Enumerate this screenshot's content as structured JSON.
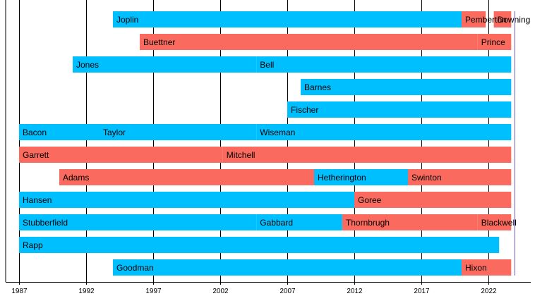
{
  "chart_data": {
    "type": "timeline",
    "x_range": [
      1986,
      2023.2
    ],
    "ticks": [
      1987,
      1992,
      1997,
      2002,
      2007,
      2012,
      2017,
      2022
    ],
    "grid": true,
    "colors": {
      "a": "#00BFFF",
      "b": "#FA6A5E"
    },
    "rows": [
      {
        "segments": [
          {
            "label": "Joplin",
            "start": 1994.0,
            "end": 2020.0,
            "color": "a"
          },
          {
            "label": "Pemberton",
            "start": 2020.0,
            "end": 2021.8,
            "color": "b"
          },
          {
            "label": "Downing",
            "start": 2022.4,
            "end": 2023.7,
            "color": "b"
          }
        ]
      },
      {
        "segments": [
          {
            "label": "Buettner",
            "start": 1996.0,
            "end": 2021.2,
            "color": "b"
          },
          {
            "label": "Prince",
            "start": 2021.2,
            "end": 2023.7,
            "color": "b"
          }
        ]
      },
      {
        "segments": [
          {
            "label": "Jones",
            "start": 1991.0,
            "end": 2004.7,
            "color": "a"
          },
          {
            "label": "Bell",
            "start": 2004.7,
            "end": 2023.7,
            "color": "a"
          }
        ]
      },
      {
        "segments": [
          {
            "label": "Barnes",
            "start": 2008.0,
            "end": 2023.7,
            "color": "a"
          }
        ]
      },
      {
        "segments": [
          {
            "label": "Fischer",
            "start": 2007.0,
            "end": 2023.7,
            "color": "a"
          }
        ]
      },
      {
        "segments": [
          {
            "label": "Bacon",
            "start": 1987.0,
            "end": 1993.0,
            "color": "a"
          },
          {
            "label": "Taylor",
            "start": 1993.0,
            "end": 2004.7,
            "color": "a"
          },
          {
            "label": "Wiseman",
            "start": 2004.7,
            "end": 2023.7,
            "color": "a"
          }
        ]
      },
      {
        "segments": [
          {
            "label": "Garrett",
            "start": 1987.0,
            "end": 2002.2,
            "color": "b"
          },
          {
            "label": "Mitchell",
            "start": 2002.2,
            "end": 2023.7,
            "color": "b"
          }
        ]
      },
      {
        "segments": [
          {
            "label": "Adams",
            "start": 1990.0,
            "end": 2009.0,
            "color": "b"
          },
          {
            "label": "Hetherington",
            "start": 2009.0,
            "end": 2016.0,
            "color": "a"
          },
          {
            "label": "Swinton",
            "start": 2016.0,
            "end": 2023.7,
            "color": "b"
          }
        ]
      },
      {
        "segments": [
          {
            "label": "Hansen",
            "start": 1987.0,
            "end": 2012.0,
            "color": "a"
          },
          {
            "label": "Goree",
            "start": 2012.0,
            "end": 2023.7,
            "color": "b"
          }
        ]
      },
      {
        "segments": [
          {
            "label": "Stubberfield",
            "start": 1987.0,
            "end": 2004.7,
            "color": "a"
          },
          {
            "label": "Gabbard",
            "start": 2004.7,
            "end": 2011.1,
            "color": "a"
          },
          {
            "label": "Thornbrugh",
            "start": 2011.1,
            "end": 2021.2,
            "color": "b"
          },
          {
            "label": "Blackwell",
            "start": 2021.2,
            "end": 2023.7,
            "color": "b"
          }
        ]
      },
      {
        "segments": [
          {
            "label": "Rapp",
            "start": 1987.0,
            "end": 2022.8,
            "color": "a"
          }
        ]
      },
      {
        "segments": [
          {
            "label": "Goodman",
            "start": 1994.0,
            "end": 2020.0,
            "color": "a"
          },
          {
            "label": "Hixon",
            "start": 2020.0,
            "end": 2023.7,
            "color": "b"
          }
        ]
      }
    ]
  }
}
